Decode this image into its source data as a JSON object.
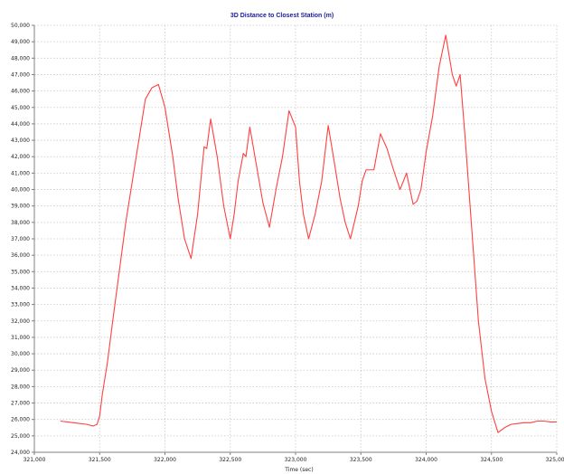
{
  "chart_data": {
    "type": "line",
    "title": "3D Distance to Closest Station (m)",
    "xlabel": "Time (sec)",
    "ylabel": "",
    "xlim": [
      321000,
      325000
    ],
    "ylim": [
      24000,
      50000
    ],
    "x_ticks": [
      321000,
      321500,
      322000,
      322500,
      323000,
      323500,
      324000,
      324500,
      325000
    ],
    "x_tick_labels": [
      "321,000",
      "321,500",
      "322,000",
      "322,500",
      "323,000",
      "323,500",
      "324,000",
      "324,500",
      "325,000"
    ],
    "y_ticks": [
      24000,
      25000,
      26000,
      27000,
      28000,
      29000,
      30000,
      31000,
      32000,
      33000,
      34000,
      35000,
      36000,
      37000,
      38000,
      39000,
      40000,
      41000,
      42000,
      43000,
      44000,
      45000,
      46000,
      47000,
      48000,
      49000,
      50000
    ],
    "y_tick_labels": [
      "24,000",
      "25,000",
      "26,000",
      "27,000",
      "28,000",
      "29,000",
      "30,000",
      "31,000",
      "32,000",
      "33,000",
      "34,000",
      "35,000",
      "36,000",
      "37,000",
      "38,000",
      "39,000",
      "40,000",
      "41,000",
      "42,000",
      "43,000",
      "44,000",
      "45,000",
      "46,000",
      "47,000",
      "48,000",
      "49,000",
      "50,000"
    ],
    "grid": true,
    "line_color": "#ff4040",
    "series": [
      {
        "x": [
          321200,
          321300,
          321400,
          321450,
          321480,
          321500,
          321520,
          321560,
          321600,
          321650,
          321700,
          321750,
          321800,
          321850,
          321900,
          321950,
          322000,
          322030,
          322060,
          322100,
          322150,
          322200,
          322250,
          322280,
          322300,
          322320,
          322350,
          322400,
          322450,
          322500,
          322530,
          322560,
          322600,
          322620,
          322650,
          322700,
          322750,
          322800,
          322850,
          322900,
          322950,
          323000,
          323030,
          323060,
          323100,
          323150,
          323200,
          323250,
          323300,
          323340,
          323380,
          323420,
          323450,
          323480,
          323510,
          323540,
          323600,
          323650,
          323700,
          323750,
          323800,
          323850,
          323900,
          323930,
          323960,
          324000,
          324050,
          324100,
          324150,
          324200,
          324230,
          324260,
          324300,
          324350,
          324400,
          324450,
          324500,
          324550,
          324600,
          324650,
          324700,
          324750,
          324800,
          324850,
          324900,
          324950,
          325000
        ],
        "y": [
          25900,
          25800,
          25700,
          25600,
          25700,
          26200,
          27500,
          29500,
          32000,
          35000,
          38000,
          40500,
          43000,
          45500,
          46200,
          46400,
          45000,
          43500,
          42000,
          39500,
          37000,
          35800,
          38500,
          41000,
          42600,
          42500,
          44300,
          42000,
          39000,
          37000,
          38500,
          40500,
          42200,
          42000,
          43800,
          41500,
          39200,
          37700,
          40000,
          42000,
          44800,
          43800,
          40500,
          38500,
          37000,
          38500,
          40500,
          43900,
          41500,
          39500,
          38000,
          37000,
          38000,
          39000,
          40500,
          41200,
          41200,
          43400,
          42500,
          41200,
          40000,
          41000,
          39100,
          39300,
          40000,
          42300,
          44500,
          47500,
          49400,
          47000,
          46300,
          47000,
          43000,
          37500,
          32000,
          28500,
          26500,
          25200,
          25500,
          25700,
          25750,
          25800,
          25800,
          25900,
          25900,
          25850,
          25850
        ]
      }
    ]
  }
}
